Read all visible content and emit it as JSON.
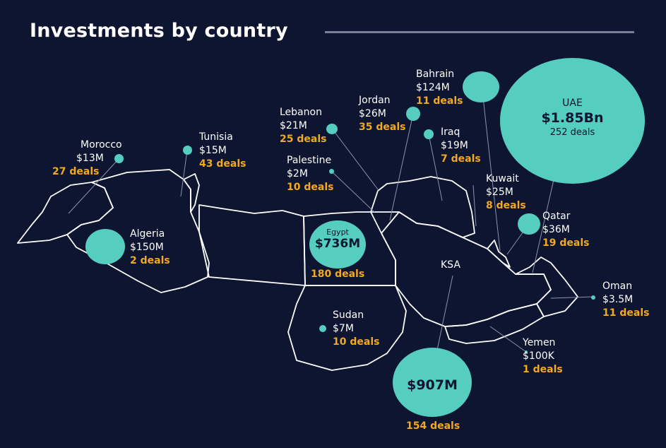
{
  "title": "Investments by country",
  "colors": {
    "background": "#0d1530",
    "bubble": "#55cdbf",
    "deals": "#f2a91e",
    "outline": "#ffffff",
    "rule": "#7a7f96"
  },
  "countries": {
    "morocco": {
      "name": "Morocco",
      "amount": "$13M",
      "deals": "27 deals"
    },
    "tunisia": {
      "name": "Tunisia",
      "amount": "$15M",
      "deals": "43 deals"
    },
    "algeria": {
      "name": "Algeria",
      "amount": "$150M",
      "deals": "2 deals"
    },
    "lebanon": {
      "name": "Lebanon",
      "amount": "$21M",
      "deals": "25 deals"
    },
    "palestine": {
      "name": "Palestine",
      "amount": "$2M",
      "deals": "10 deals"
    },
    "jordan": {
      "name": "Jordan",
      "amount": "$26M",
      "deals": "35 deals"
    },
    "bahrain": {
      "name": "Bahrain",
      "amount": "$124M",
      "deals": "11 deals"
    },
    "iraq": {
      "name": "Iraq",
      "amount": "$19M",
      "deals": "7 deals"
    },
    "uae": {
      "name": "UAE",
      "amount": "$1.85Bn",
      "deals": "252 deals"
    },
    "kuwait": {
      "name": "Kuwait",
      "amount": "$25M",
      "deals": "8 deals"
    },
    "qatar": {
      "name": "Qatar",
      "amount": "$36M",
      "deals": "19 deals"
    },
    "egypt": {
      "name": "Egypt",
      "amount": "$736M",
      "deals": "180 deals"
    },
    "ksa": {
      "name": "KSA",
      "amount": "$907M",
      "deals": "154 deals"
    },
    "oman": {
      "name": "Oman",
      "amount": "$3.5M",
      "deals": "11 deals"
    },
    "sudan": {
      "name": "Sudan",
      "amount": "$7M",
      "deals": "10 deals"
    },
    "yemen": {
      "name": "Yemen",
      "amount": "$100K",
      "deals": "1 deals"
    }
  }
}
